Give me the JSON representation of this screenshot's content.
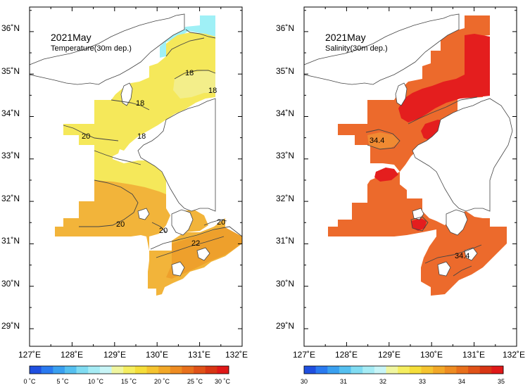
{
  "panels": [
    {
      "title": "2021May",
      "subtitle": "Temperature(30m dep.)",
      "lat_labels": [
        "29˚N",
        "30˚N",
        "31˚N",
        "32˚N",
        "33˚N",
        "34˚N",
        "35˚N",
        "36˚N"
      ],
      "lon_labels": [
        "127˚E",
        "128˚E",
        "129˚E",
        "130˚E",
        "131˚E",
        "132˚E"
      ],
      "contour_labels": [
        "18",
        "18",
        "18",
        "18",
        "20",
        "20",
        "20",
        "20",
        "22"
      ],
      "colorbar_labels": [
        "0 ˚C",
        "5 ˚C",
        "10 ˚C",
        "15 ˚C",
        "20 ˚C",
        "25 ˚C",
        "30 ˚C"
      ]
    },
    {
      "title": "2021May",
      "subtitle": "Salinity(30m dep.)",
      "lat_labels": [
        "29˚N",
        "30˚N",
        "31˚N",
        "32˚N",
        "33˚N",
        "34˚N",
        "35˚N",
        "36˚N"
      ],
      "lon_labels": [
        "127˚E",
        "128˚E",
        "129˚E",
        "130˚E",
        "131˚E",
        "132˚E"
      ],
      "contour_labels": [
        "34.4",
        "34.4"
      ],
      "colorbar_labels": [
        "30",
        "31",
        "32",
        "33",
        "34",
        "35"
      ]
    }
  ],
  "colorbar": {
    "temperature_colors": [
      "#1f4fe0",
      "#2a7af0",
      "#3aa0f0",
      "#55c0f0",
      "#80dcf2",
      "#a6ecf5",
      "#c8f5f7",
      "#f0f6a0",
      "#f5ee60",
      "#f5de3a",
      "#f5c430",
      "#f2a828",
      "#ee8c22",
      "#e8701c",
      "#e05218",
      "#d83614",
      "#e01818"
    ],
    "salinity_colors": [
      "#1f4fe0",
      "#2a7af0",
      "#3aa0f0",
      "#55c0f0",
      "#80dcf2",
      "#a6ecf5",
      "#c8f5f7",
      "#f0f6a0",
      "#f5ee60",
      "#f5de3a",
      "#f5c430",
      "#f2a828",
      "#ee8c22",
      "#e8701c",
      "#e05218",
      "#d83614",
      "#e01818"
    ]
  },
  "colors": {
    "temp_main": "#f5e85a",
    "temp_light": "#f3ee8a",
    "temp_warm": "#f2b43a",
    "temp_warmer": "#eea02c",
    "temp_cold": "#9ff0f6",
    "sal_main": "#ec6a2c",
    "sal_high": "#e41e1e",
    "sal_low": "#f08a32"
  }
}
